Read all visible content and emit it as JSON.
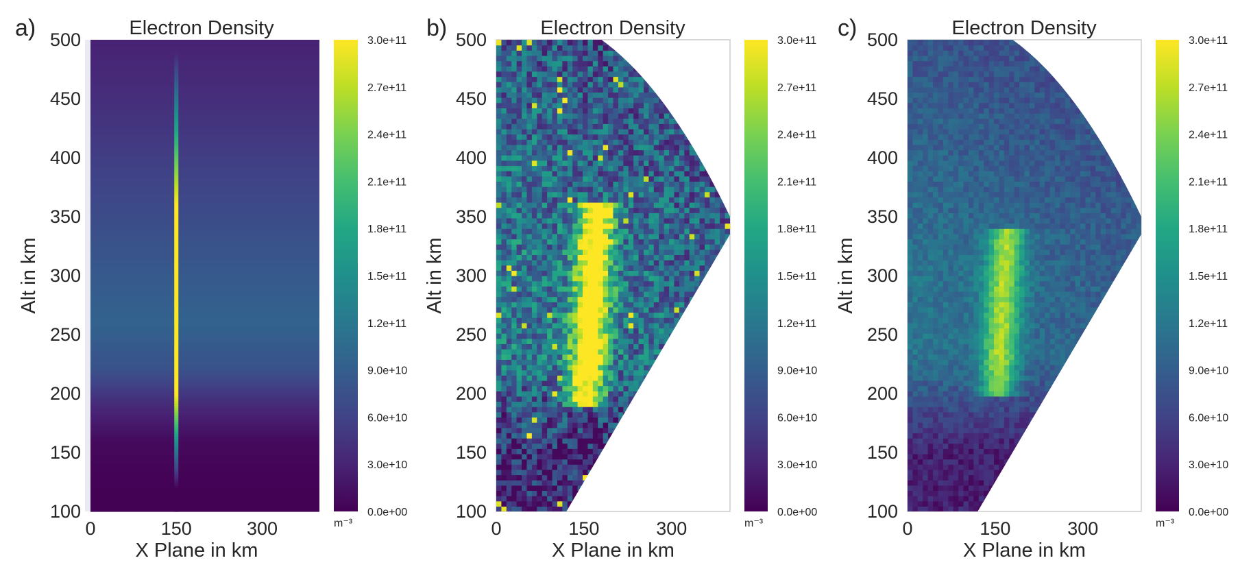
{
  "figure": {
    "panels": [
      {
        "tag": "a)"
      },
      {
        "tag": "b)"
      },
      {
        "tag": "c)"
      }
    ]
  },
  "chart_data": [
    {
      "type": "heatmap",
      "title": "Electron Density",
      "xlabel": "X Plane in km",
      "ylabel": "Alt in km",
      "xlim": [
        0,
        400
      ],
      "ylim": [
        100,
        500
      ],
      "xticks": [
        0,
        150,
        300
      ],
      "yticks": [
        100,
        150,
        200,
        250,
        300,
        350,
        400,
        450,
        500
      ],
      "colorbar": {
        "unit": "m⁻³",
        "ticks": [
          "0.0e+00",
          "3.0e+10",
          "6.0e+10",
          "9.0e+10",
          "1.2e+11",
          "1.5e+11",
          "1.8e+11",
          "2.1e+11",
          "2.4e+11",
          "2.7e+11",
          "3.0e+11"
        ],
        "range": [
          0,
          300000000000.0
        ],
        "colormap": "viridis"
      },
      "field": {
        "background_profile_alt_km": [
          100,
          130,
          160,
          190,
          220,
          260,
          300,
          350,
          400,
          450,
          500
        ],
        "background_profile_density": [
          1000000000.0,
          1500000000.0,
          8000000000.0,
          35000000000.0,
          75000000000.0,
          95000000000.0,
          85000000000.0,
          70000000000.0,
          55000000000.0,
          40000000000.0,
          28000000000.0
        ],
        "enhancement_x_km": 150,
        "enhancement_peak_density": 300000000000.0,
        "enhancement_alt_range_km": [
          180,
          380
        ]
      }
    },
    {
      "type": "heatmap",
      "title": "Electron Density",
      "xlabel": "X Plane in km",
      "ylabel": "Alt in km",
      "xlim": [
        0,
        400
      ],
      "ylim": [
        100,
        500
      ],
      "xticks": [
        0,
        150,
        300
      ],
      "yticks": [
        100,
        150,
        200,
        250,
        300,
        350,
        400,
        450,
        500
      ],
      "colorbar": {
        "unit": "m⁻³",
        "ticks": [
          "0.0e+00",
          "3.0e+10",
          "6.0e+10",
          "9.0e+10",
          "1.2e+11",
          "1.5e+11",
          "1.8e+11",
          "2.1e+11",
          "2.4e+11",
          "2.7e+11",
          "3.0e+11"
        ],
        "range": [
          0,
          300000000000.0
        ],
        "colormap": "viridis"
      },
      "field": {
        "reconstruction": "noisy",
        "fan_boundary_lower_km": [
          [
            120,
            100
          ],
          [
            400,
            335
          ]
        ],
        "fan_boundary_upper_km": [
          [
            180,
            500
          ],
          [
            400,
            350
          ]
        ],
        "enhancement_x_km": 160,
        "enhancement_peak_density": 300000000000.0,
        "enhancement_alt_range_km": [
          190,
          360
        ]
      }
    },
    {
      "type": "heatmap",
      "title": "Electron Density",
      "xlabel": "X Plane in km",
      "ylabel": "Alt in km",
      "xlim": [
        0,
        400
      ],
      "ylim": [
        100,
        500
      ],
      "xticks": [
        0,
        150,
        300
      ],
      "yticks": [
        100,
        150,
        200,
        250,
        300,
        350,
        400,
        450,
        500
      ],
      "colorbar": {
        "unit": "m⁻³",
        "ticks": [
          "0.0e+00",
          "3.0e+10",
          "6.0e+10",
          "9.0e+10",
          "1.2e+11",
          "1.5e+11",
          "1.8e+11",
          "2.1e+11",
          "2.4e+11",
          "2.7e+11",
          "3.0e+11"
        ],
        "range": [
          0,
          300000000000.0
        ],
        "colormap": "viridis"
      },
      "field": {
        "reconstruction": "smooth",
        "fan_boundary_lower_km": [
          [
            120,
            100
          ],
          [
            400,
            335
          ]
        ],
        "fan_boundary_upper_km": [
          [
            180,
            500
          ],
          [
            400,
            350
          ]
        ],
        "enhancement_x_km": 160,
        "enhancement_peak_density": 260000000000.0,
        "enhancement_alt_range_km": [
          200,
          340
        ]
      }
    }
  ]
}
